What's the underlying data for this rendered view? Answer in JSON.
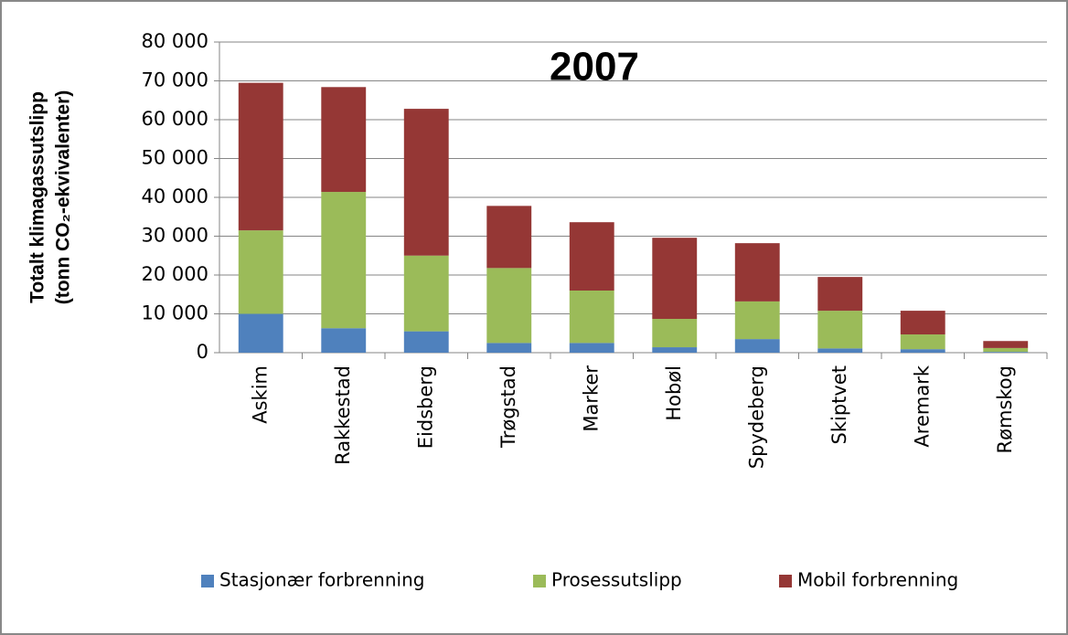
{
  "chart_data": {
    "type": "stacked-bar",
    "title": "2007",
    "y_label": [
      "Totalt klimagassutslipp",
      "(tonn CO₂-ekvivalenter)"
    ],
    "categories": [
      "Askim",
      "Rakkestad",
      "Eidsberg",
      "Trøgstad",
      "Marker",
      "Hobøl",
      "Spydeberg",
      "Skiptvet",
      "Aremark",
      "Rømskog"
    ],
    "series": [
      {
        "name": "Stasjonær forbrenning",
        "color": "#4f81bd",
        "values": [
          10000,
          6300,
          5500,
          2500,
          2500,
          1400,
          3500,
          1100,
          900,
          200
        ]
      },
      {
        "name": "Prosessutslipp",
        "color": "#9bbb59",
        "values": [
          21500,
          35100,
          19500,
          19300,
          13500,
          7300,
          9700,
          9700,
          3800,
          1000
        ]
      },
      {
        "name": "Mobil forbrenning",
        "color": "#953735",
        "values": [
          38000,
          27000,
          37800,
          16000,
          17600,
          20900,
          15000,
          8700,
          6100,
          1800
        ]
      }
    ],
    "ylim": [
      0,
      80000
    ],
    "yticks": [
      0,
      {
        "value": 10000,
        "label": "10 000"
      },
      {
        "value": 20000,
        "label": "20 000"
      },
      {
        "value": 30000,
        "label": "30 000"
      },
      {
        "value": 40000,
        "label": "40 000"
      },
      {
        "value": 50000,
        "label": "50 000"
      },
      {
        "value": 60000,
        "label": "60 000"
      },
      {
        "value": 70000,
        "label": "70 000"
      },
      {
        "value": 80000,
        "label": "80 000"
      }
    ],
    "grid": true,
    "legend": "bottom"
  }
}
